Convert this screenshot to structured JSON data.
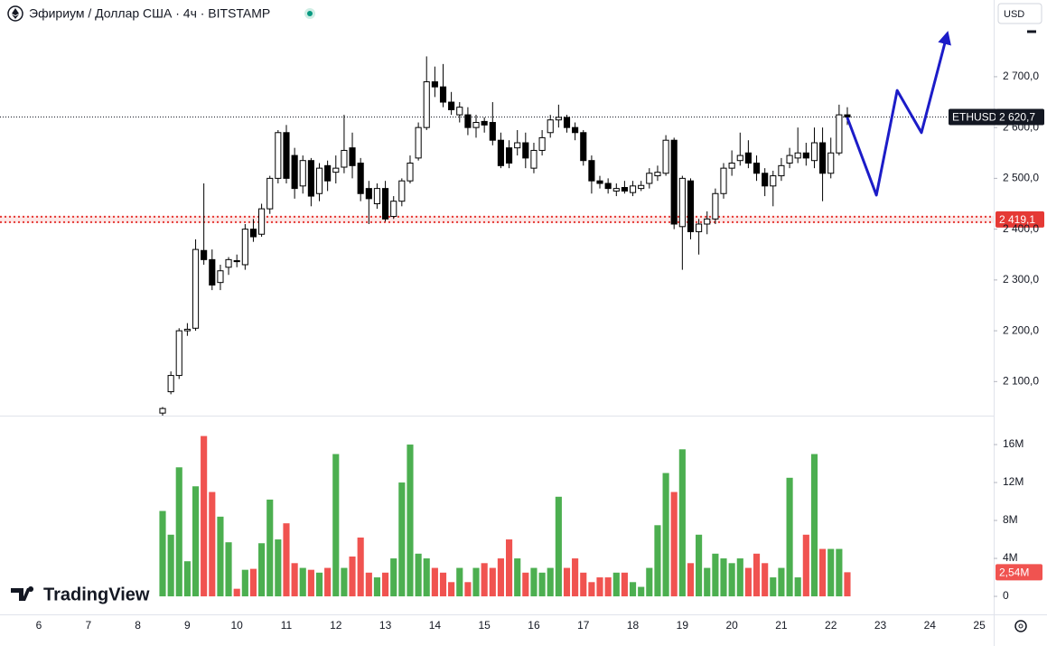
{
  "chart_data": {
    "type": "candlestick",
    "title": "Эфириум / Доллар США · 4ч · BITSTAMP",
    "currency": "USD",
    "watermark": "TradingView",
    "up_color": "#ffffff",
    "down_color": "#000000",
    "x": [
      8.5,
      8.667,
      8.833,
      9,
      9.167,
      9.333,
      9.5,
      9.667,
      9.833,
      10,
      10.167,
      10.333,
      10.5,
      10.667,
      10.833,
      11,
      11.167,
      11.333,
      11.5,
      11.667,
      11.833,
      12,
      12.167,
      12.333,
      12.5,
      12.667,
      12.833,
      13,
      13.167,
      13.333,
      13.5,
      13.667,
      13.833,
      14,
      14.167,
      14.333,
      14.5,
      14.667,
      14.833,
      15,
      15.167,
      15.333,
      15.5,
      15.667,
      15.833,
      16,
      16.167,
      16.333,
      16.5,
      16.667,
      16.833,
      17,
      17.167,
      17.333,
      17.5,
      17.667,
      17.833,
      18,
      18.167,
      18.333,
      18.5,
      18.667,
      18.833,
      19,
      19.167,
      19.333,
      19.5,
      19.667,
      19.833,
      20,
      20.167,
      20.333,
      20.5,
      20.667,
      20.833,
      21,
      21.167,
      21.333,
      21.5,
      21.667,
      21.833,
      22,
      22.167,
      22.333
    ],
    "open": [
      2038,
      2080,
      2112,
      2200,
      2205,
      2358,
      2340,
      2295,
      2325,
      2338,
      2330,
      2400,
      2390,
      2440,
      2500,
      2590,
      2545,
      2485,
      2535,
      2470,
      2525,
      2512,
      2522,
      2560,
      2530,
      2480,
      2450,
      2480,
      2425,
      2455,
      2495,
      2540,
      2600,
      2690,
      2680,
      2650,
      2625,
      2625,
      2600,
      2612,
      2610,
      2575,
      2560,
      2560,
      2570,
      2520,
      2555,
      2590,
      2615,
      2620,
      2600,
      2590,
      2535,
      2495,
      2490,
      2475,
      2482,
      2472,
      2480,
      2490,
      2505,
      2510,
      2575,
      2405,
      2495,
      2395,
      2410,
      2420,
      2470,
      2520,
      2535,
      2550,
      2530,
      2510,
      2485,
      2505,
      2530,
      2540,
      2550,
      2535,
      2570,
      2510,
      2550,
      2625
    ],
    "high": [
      2050,
      2120,
      2205,
      2215,
      2380,
      2490,
      2360,
      2330,
      2345,
      2350,
      2410,
      2420,
      2450,
      2505,
      2595,
      2605,
      2560,
      2545,
      2540,
      2530,
      2535,
      2545,
      2625,
      2590,
      2540,
      2495,
      2490,
      2495,
      2465,
      2500,
      2545,
      2610,
      2740,
      2720,
      2725,
      2670,
      2650,
      2640,
      2625,
      2620,
      2650,
      2590,
      2575,
      2595,
      2590,
      2570,
      2595,
      2625,
      2645,
      2625,
      2610,
      2595,
      2545,
      2505,
      2500,
      2490,
      2495,
      2495,
      2495,
      2520,
      2525,
      2585,
      2580,
      2505,
      2500,
      2420,
      2435,
      2480,
      2530,
      2555,
      2590,
      2575,
      2545,
      2520,
      2515,
      2540,
      2560,
      2600,
      2570,
      2600,
      2600,
      2580,
      2645,
      2640
    ],
    "low": [
      2033,
      2075,
      2105,
      2190,
      2200,
      2330,
      2280,
      2280,
      2310,
      2325,
      2320,
      2375,
      2385,
      2430,
      2490,
      2490,
      2460,
      2470,
      2445,
      2455,
      2475,
      2490,
      2510,
      2500,
      2455,
      2410,
      2440,
      2415,
      2420,
      2445,
      2490,
      2535,
      2595,
      2660,
      2640,
      2625,
      2610,
      2585,
      2580,
      2590,
      2565,
      2520,
      2520,
      2545,
      2520,
      2510,
      2545,
      2580,
      2600,
      2590,
      2575,
      2525,
      2470,
      2480,
      2470,
      2465,
      2470,
      2465,
      2475,
      2480,
      2495,
      2505,
      2400,
      2320,
      2380,
      2350,
      2390,
      2410,
      2460,
      2505,
      2525,
      2520,
      2495,
      2465,
      2445,
      2495,
      2520,
      2530,
      2525,
      2520,
      2455,
      2500,
      2545,
      2605
    ],
    "close": [
      2047,
      2112,
      2200,
      2203,
      2360,
      2340,
      2290,
      2318,
      2340,
      2336,
      2400,
      2385,
      2440,
      2500,
      2590,
      2500,
      2480,
      2535,
      2465,
      2520,
      2495,
      2520,
      2555,
      2525,
      2470,
      2460,
      2480,
      2420,
      2455,
      2495,
      2530,
      2600,
      2690,
      2680,
      2650,
      2635,
      2640,
      2600,
      2610,
      2605,
      2575,
      2525,
      2530,
      2570,
      2540,
      2555,
      2580,
      2615,
      2620,
      2600,
      2590,
      2535,
      2495,
      2490,
      2480,
      2480,
      2475,
      2485,
      2486,
      2510,
      2512,
      2575,
      2410,
      2500,
      2395,
      2410,
      2420,
      2470,
      2520,
      2530,
      2545,
      2530,
      2510,
      2485,
      2505,
      2525,
      2545,
      2550,
      2540,
      2570,
      2510,
      2550,
      2625,
      2620.7
    ],
    "xlim": [
      5.215,
      25.29
    ],
    "xticks": [
      6,
      7,
      8,
      9,
      10,
      11,
      12,
      13,
      14,
      15,
      16,
      17,
      18,
      19,
      20,
      21,
      22,
      23,
      24,
      25
    ],
    "ylim": [
      2033,
      2851
    ],
    "yticks": [
      {
        "value": 2100,
        "label": "2 100,0"
      },
      {
        "value": 2200,
        "label": "2 200,0"
      },
      {
        "value": 2300,
        "label": "2 300,0"
      },
      {
        "value": 2400,
        "label": "2 400,0"
      },
      {
        "value": 2500,
        "label": "2 500,0"
      },
      {
        "value": 2600,
        "label": "2 600,0"
      },
      {
        "value": 2700,
        "label": "2 700,0"
      }
    ],
    "last_price": {
      "symbol": "ETHUSD",
      "value": 2620.7,
      "label": "2 620,7"
    },
    "level": {
      "value": 2419.1,
      "label": "2 419,1",
      "color": "#e53935"
    },
    "forecast": {
      "color": "#1c1cc8",
      "x": [
        22.33,
        22.92,
        23.34,
        23.83,
        24.34
      ],
      "values": [
        2620,
        2467,
        2673,
        2590,
        2780
      ]
    },
    "volume": {
      "up_color": "#4caf50",
      "down_color": "#f05350",
      "values": [
        9,
        6.5,
        13.6,
        3.7,
        11.6,
        16.9,
        11,
        8.4,
        5.7,
        0.8,
        2.8,
        2.9,
        5.6,
        10.2,
        6,
        7.7,
        3.5,
        3,
        2.8,
        2.5,
        3,
        15,
        3,
        4.2,
        6.2,
        2.5,
        2,
        2.5,
        4,
        12,
        16,
        4.5,
        4,
        3,
        2.5,
        1.5,
        3,
        1.5,
        3,
        3.5,
        3,
        4,
        6,
        4,
        2.5,
        3,
        2.5,
        3,
        10.5,
        3,
        4,
        2.5,
        1.5,
        2,
        2,
        2.5,
        2.5,
        1.5,
        1,
        3,
        7.5,
        13,
        11,
        15.5,
        3.5,
        6.5,
        3,
        4.5,
        4,
        3.5,
        4,
        3,
        4.5,
        3.5,
        2,
        3,
        12.5,
        2,
        6.5,
        15,
        5,
        5,
        5,
        2.54
      ],
      "ylim": [
        -1.9,
        18.1
      ],
      "yticks": [
        0,
        {
          "value": 4,
          "label": "4M"
        },
        {
          "value": 8,
          "label": "8M"
        },
        {
          "value": 12,
          "label": "12M"
        },
        {
          "value": 16,
          "label": "16M"
        }
      ],
      "last_label": "2,54M"
    }
  }
}
